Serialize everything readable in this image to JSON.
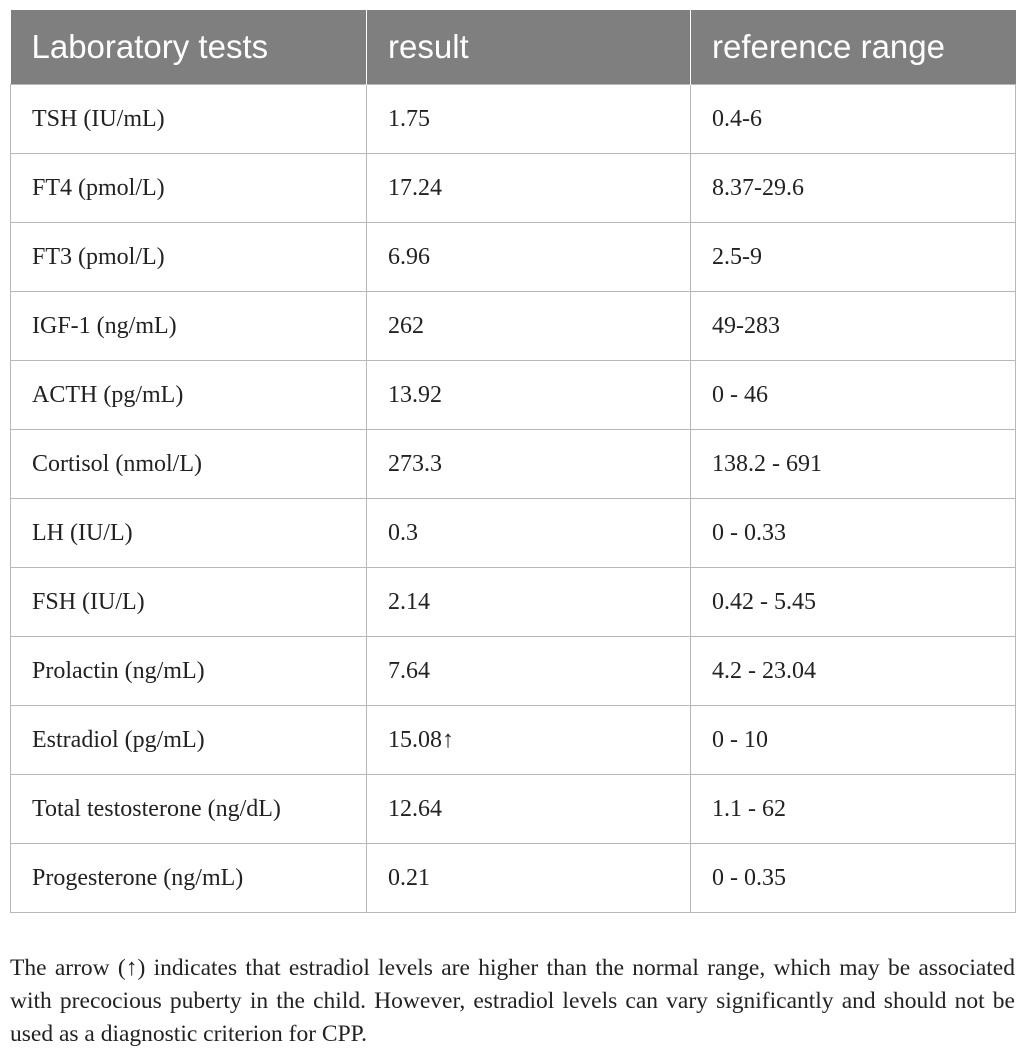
{
  "table": {
    "headers": [
      "Laboratory tests",
      "result",
      "reference range"
    ],
    "rows": [
      [
        "TSH (IU/mL)",
        "1.75",
        "0.4-6"
      ],
      [
        "FT4 (pmol/L)",
        "17.24",
        "8.37-29.6"
      ],
      [
        "FT3 (pmol/L)",
        "6.96",
        "2.5-9"
      ],
      [
        "IGF-1 (ng/mL)",
        "262",
        "49-283"
      ],
      [
        "ACTH (pg/mL)",
        "13.92",
        "0 - 46"
      ],
      [
        "Cortisol (nmol/L)",
        "273.3",
        "138.2 - 691"
      ],
      [
        "LH (IU/L)",
        "0.3",
        "0 - 0.33"
      ],
      [
        "FSH (IU/L)",
        "2.14",
        "0.42 - 5.45"
      ],
      [
        "Prolactin (ng/mL)",
        "7.64",
        "4.2 - 23.04"
      ],
      [
        "Estradiol (pg/mL)",
        "15.08↑",
        "0 - 10"
      ],
      [
        "Total testosterone (ng/dL)",
        "12.64",
        "1.1 - 62"
      ],
      [
        "Progesterone (ng/mL)",
        "0.21",
        "0 - 0.35"
      ]
    ]
  },
  "footnote": "The arrow (↑) indicates that estradiol levels are higher than the normal range, which may be associated with precocious puberty in the child. However, estradiol levels can vary significantly and should not be used as a diagnostic criterion for CPP.",
  "colors": {
    "header_bg": "#7f7f7f",
    "header_text": "#ffffff",
    "border": "#b8b8b8",
    "text": "#222222"
  }
}
